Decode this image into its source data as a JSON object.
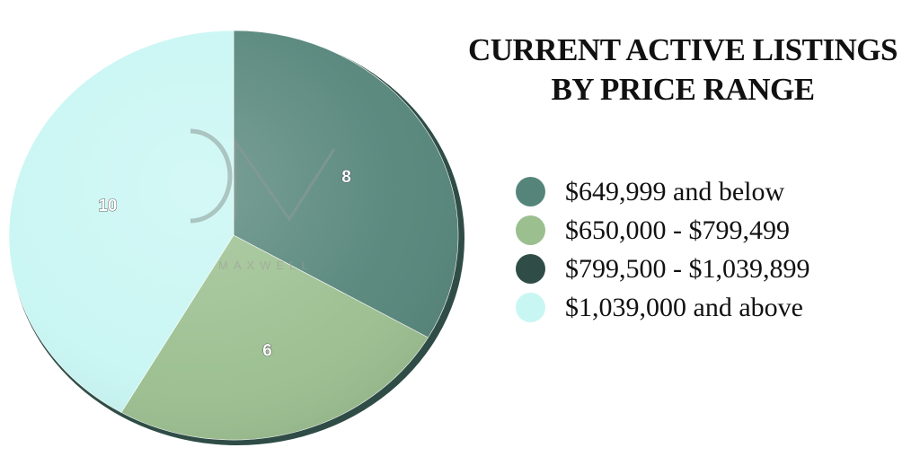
{
  "chart_data": {
    "type": "pie",
    "title": [
      "CURRENT ACTIVE LISTINGS",
      "BY PRICE RANGE"
    ],
    "categories": [
      "$649,999 and below",
      "$650,000 - $799,499",
      "$799,500 - $1,039,899",
      "$1,039,000 and above"
    ],
    "values": [
      8,
      6,
      0,
      10
    ],
    "data_labels": [
      "8",
      "6",
      "",
      "10"
    ],
    "colors": [
      "#55857a",
      "#9bbf8f",
      "#2f4d46",
      "#c8f6f3"
    ],
    "legend": "right",
    "start_angle_deg": 0,
    "direction": "clockwise",
    "style": "3d-tilted"
  },
  "watermark": {
    "mark": "DM",
    "text": "MAXWELL"
  }
}
